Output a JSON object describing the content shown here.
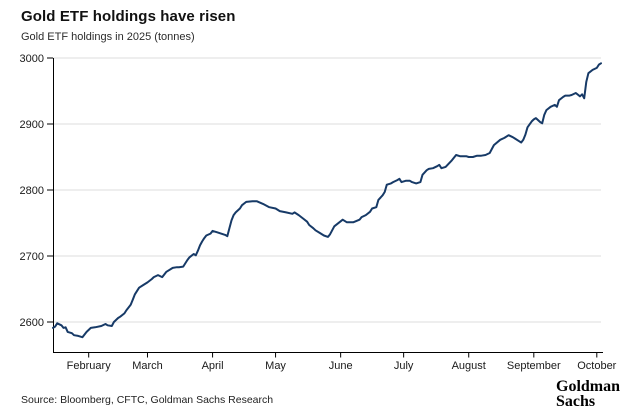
{
  "header": {
    "title": "Gold ETF holdings have risen",
    "subtitle": "Gold ETF holdings in 2025 (tonnes)"
  },
  "footer": {
    "source": "Source: Bloomberg, CFTC, Goldman Sachs Research",
    "logo_line1": "Goldman",
    "logo_line2": "Sachs"
  },
  "chart_data": {
    "type": "line",
    "title": "Gold ETF holdings have risen",
    "subtitle": "Gold ETF holdings in 2025 (tonnes)",
    "unit": "tonnes",
    "series_name": "Gold ETF holdings",
    "line_color": "#173a67",
    "grid_color": "#dcdcdc",
    "axis_color": "#000000",
    "label_color": "#1a1a1a",
    "grid": "horizontal-only",
    "legend": "none",
    "ylim": [
      2600,
      3000
    ],
    "yticks": [
      2600,
      2700,
      2800,
      2900,
      3000
    ],
    "x_domain_days": [
      15,
      276
    ],
    "xticks": [
      {
        "day": 32,
        "label": "February"
      },
      {
        "day": 60,
        "label": "March"
      },
      {
        "day": 91,
        "label": "April"
      },
      {
        "day": 121,
        "label": "May"
      },
      {
        "day": 152,
        "label": "June"
      },
      {
        "day": 182,
        "label": "July"
      },
      {
        "day": 213,
        "label": "August"
      },
      {
        "day": 244,
        "label": "September"
      },
      {
        "day": 274,
        "label": "October"
      }
    ],
    "points": [
      [
        15,
        2591
      ],
      [
        16,
        2593
      ],
      [
        17,
        2598
      ],
      [
        19,
        2595
      ],
      [
        20,
        2591
      ],
      [
        21,
        2592
      ],
      [
        22,
        2585
      ],
      [
        24,
        2583
      ],
      [
        25,
        2580
      ],
      [
        27,
        2579
      ],
      [
        29,
        2577
      ],
      [
        31,
        2585
      ],
      [
        33,
        2591
      ],
      [
        35,
        2592
      ],
      [
        38,
        2594
      ],
      [
        40,
        2597
      ],
      [
        41,
        2595
      ],
      [
        43,
        2594
      ],
      [
        44,
        2600
      ],
      [
        46,
        2606
      ],
      [
        47,
        2608
      ],
      [
        49,
        2613
      ],
      [
        50,
        2618
      ],
      [
        52,
        2626
      ],
      [
        53,
        2634
      ],
      [
        54,
        2642
      ],
      [
        56,
        2652
      ],
      [
        58,
        2656
      ],
      [
        60,
        2660
      ],
      [
        62,
        2665
      ],
      [
        63,
        2668
      ],
      [
        65,
        2671
      ],
      [
        67,
        2668
      ],
      [
        69,
        2676
      ],
      [
        72,
        2682
      ],
      [
        74,
        2683
      ],
      [
        75,
        2683
      ],
      [
        77,
        2684
      ],
      [
        79,
        2694
      ],
      [
        80,
        2698
      ],
      [
        82,
        2703
      ],
      [
        83,
        2701
      ],
      [
        84,
        2708
      ],
      [
        85,
        2716
      ],
      [
        86,
        2722
      ],
      [
        87,
        2727
      ],
      [
        88,
        2731
      ],
      [
        90,
        2734
      ],
      [
        91,
        2738
      ],
      [
        93,
        2736
      ],
      [
        95,
        2734
      ],
      [
        97,
        2732
      ],
      [
        98,
        2730
      ],
      [
        99,
        2742
      ],
      [
        100,
        2754
      ],
      [
        101,
        2762
      ],
      [
        102,
        2766
      ],
      [
        104,
        2772
      ],
      [
        105,
        2777
      ],
      [
        107,
        2782
      ],
      [
        110,
        2783
      ],
      [
        112,
        2783
      ],
      [
        115,
        2779
      ],
      [
        118,
        2774
      ],
      [
        121,
        2772
      ],
      [
        123,
        2768
      ],
      [
        126,
        2766
      ],
      [
        129,
        2764
      ],
      [
        130,
        2766
      ],
      [
        132,
        2762
      ],
      [
        134,
        2757
      ],
      [
        136,
        2752
      ],
      [
        137,
        2747
      ],
      [
        139,
        2742
      ],
      [
        140,
        2739
      ],
      [
        142,
        2735
      ],
      [
        144,
        2731
      ],
      [
        146,
        2729
      ],
      [
        147,
        2733
      ],
      [
        149,
        2745
      ],
      [
        153,
        2755
      ],
      [
        155,
        2751
      ],
      [
        158,
        2751
      ],
      [
        161,
        2755
      ],
      [
        162,
        2759
      ],
      [
        164,
        2762
      ],
      [
        166,
        2767
      ],
      [
        167,
        2772
      ],
      [
        169,
        2774
      ],
      [
        170,
        2785
      ],
      [
        172,
        2792
      ],
      [
        173,
        2797
      ],
      [
        174,
        2808
      ],
      [
        176,
        2810
      ],
      [
        177,
        2812
      ],
      [
        179,
        2815
      ],
      [
        180,
        2817
      ],
      [
        181,
        2812
      ],
      [
        183,
        2814
      ],
      [
        185,
        2814
      ],
      [
        186,
        2812
      ],
      [
        188,
        2810
      ],
      [
        190,
        2812
      ],
      [
        191,
        2823
      ],
      [
        193,
        2830
      ],
      [
        194,
        2832
      ],
      [
        196,
        2833
      ],
      [
        198,
        2836
      ],
      [
        199,
        2838
      ],
      [
        200,
        2833
      ],
      [
        202,
        2835
      ],
      [
        205,
        2845
      ],
      [
        207,
        2853
      ],
      [
        209,
        2851
      ],
      [
        212,
        2851
      ],
      [
        213,
        2850
      ],
      [
        215,
        2850
      ],
      [
        217,
        2852
      ],
      [
        219,
        2852
      ],
      [
        221,
        2853
      ],
      [
        223,
        2856
      ],
      [
        225,
        2868
      ],
      [
        228,
        2876
      ],
      [
        230,
        2879
      ],
      [
        232,
        2883
      ],
      [
        234,
        2880
      ],
      [
        235,
        2878
      ],
      [
        237,
        2874
      ],
      [
        238,
        2872
      ],
      [
        239,
        2876
      ],
      [
        240,
        2884
      ],
      [
        241,
        2895
      ],
      [
        243,
        2904
      ],
      [
        244,
        2907
      ],
      [
        245,
        2909
      ],
      [
        247,
        2903
      ],
      [
        248,
        2901
      ],
      [
        249,
        2914
      ],
      [
        250,
        2921
      ],
      [
        252,
        2926
      ],
      [
        254,
        2929
      ],
      [
        255,
        2926
      ],
      [
        256,
        2936
      ],
      [
        258,
        2941
      ],
      [
        259,
        2943
      ],
      [
        261,
        2943
      ],
      [
        262,
        2944
      ],
      [
        264,
        2947
      ],
      [
        266,
        2942
      ],
      [
        267,
        2945
      ],
      [
        268,
        2939
      ],
      [
        269,
        2964
      ],
      [
        270,
        2977
      ],
      [
        272,
        2982
      ],
      [
        274,
        2985
      ],
      [
        275,
        2990
      ],
      [
        276,
        2992
      ]
    ]
  }
}
